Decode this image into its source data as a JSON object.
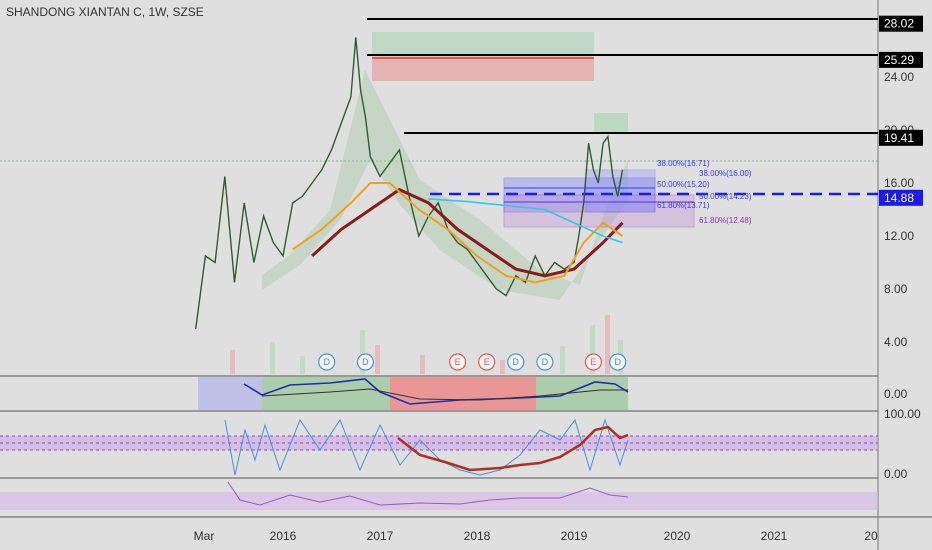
{
  "symbol_title": "SHANDONG XIANTAN C, 1W, SZSE",
  "colors": {
    "background": "#dfdfdf",
    "up": "#26a69a",
    "down": "#ef5350",
    "candle_up": "#2e7d32",
    "candle_down": "#c62828",
    "ma_long": "#8b1a1a",
    "ma_mid": "#f0a020",
    "ma_cyan": "#30c8e8",
    "fib_box": "#3a3aff",
    "fib_box2": "#8a30c8",
    "level_line": "#000000",
    "blue_dash": "#1a1aee",
    "rsi_line": "#4a90e2",
    "stoch_line": "#b03020",
    "bottom_osc": "#9a5ac0"
  },
  "chart_data": {
    "type": "line",
    "title": "SHANDONG XIANTAN C, 1W, SZSE",
    "price_axis": {
      "ylim": [
        0,
        28.5
      ],
      "ticks": [
        "4.00",
        "8.00",
        "12.00",
        "16.00",
        "20.00",
        "24.00"
      ]
    },
    "time_axis": {
      "labels": [
        "Mar",
        "2016",
        "2017",
        "2018",
        "2019",
        "2020",
        "2021",
        "20"
      ]
    },
    "price_levels": [
      {
        "label": "28.02",
        "value": 28.02,
        "style": "black"
      },
      {
        "label": "25.29",
        "value": 25.29,
        "style": "black"
      },
      {
        "label": "19.41",
        "value": 19.41,
        "style": "black"
      },
      {
        "label": "14.88",
        "value": 14.88,
        "style": "blue-dashed"
      }
    ],
    "fib_labels": [
      {
        "text": "38.00%(16.71)",
        "value": 16.71
      },
      {
        "text": "38.00%(16.00)",
        "value": 16.0
      },
      {
        "text": "50.00%(15.20)",
        "value": 15.2
      },
      {
        "text": "50.00%(14.23)",
        "value": 14.23
      },
      {
        "text": "61.80%(13.71)",
        "value": 13.71
      },
      {
        "text": "61.80%(12.48)",
        "value": 12.48
      }
    ],
    "series": [
      {
        "name": "close",
        "x": [
          2015.1,
          2015.2,
          2015.3,
          2015.4,
          2015.5,
          2015.6,
          2015.7,
          2015.8,
          2015.9,
          2016.0,
          2016.1,
          2016.2,
          2016.3,
          2016.4,
          2016.5,
          2016.6,
          2016.7,
          2016.75,
          2016.8,
          2016.85,
          2016.9,
          2017.0,
          2017.1,
          2017.2,
          2017.3,
          2017.4,
          2017.5,
          2017.6,
          2017.7,
          2017.8,
          2017.9,
          2018.0,
          2018.1,
          2018.2,
          2018.3,
          2018.4,
          2018.5,
          2018.6,
          2018.7,
          2018.8,
          2018.9,
          2019.0,
          2019.05,
          2019.1,
          2019.15,
          2019.2,
          2019.25,
          2019.3,
          2019.35,
          2019.4,
          2019.45,
          2019.5
        ],
        "values": [
          5.0,
          10.5,
          10.0,
          16.5,
          8.5,
          14.5,
          10.0,
          13.5,
          11.5,
          10.5,
          14.5,
          15.0,
          16.0,
          17.0,
          18.5,
          20.5,
          22.5,
          27.0,
          23.0,
          21.0,
          18.0,
          16.5,
          17.5,
          18.5,
          15.0,
          12.0,
          13.5,
          14.5,
          12.5,
          11.5,
          11.0,
          10.0,
          9.0,
          8.0,
          7.5,
          9.0,
          8.5,
          10.5,
          9.0,
          10.0,
          9.5,
          10.0,
          12.0,
          14.5,
          19.0,
          17.0,
          16.0,
          19.0,
          19.5,
          16.5,
          15.0,
          17.0
        ]
      },
      {
        "name": "ma-long",
        "x": [
          2016.3,
          2016.6,
          2016.9,
          2017.2,
          2017.5,
          2017.8,
          2018.1,
          2018.4,
          2018.7,
          2019.0,
          2019.3,
          2019.5
        ],
        "values": [
          10.5,
          12.5,
          14.0,
          15.5,
          14.5,
          12.5,
          11.0,
          9.5,
          9.0,
          9.5,
          11.5,
          13.0
        ]
      },
      {
        "name": "ma-mid",
        "x": [
          2016.1,
          2016.4,
          2016.7,
          2016.9,
          2017.1,
          2017.4,
          2017.7,
          2018.0,
          2018.3,
          2018.6,
          2018.9,
          2019.1,
          2019.3,
          2019.5
        ],
        "values": [
          11.0,
          12.5,
          14.5,
          16.0,
          16.0,
          14.0,
          12.5,
          10.5,
          9.0,
          8.5,
          9.0,
          11.5,
          13.0,
          12.0
        ]
      },
      {
        "name": "cyan",
        "x": [
          2017.5,
          2017.9,
          2018.3,
          2018.7,
          2019.0,
          2019.3,
          2019.5
        ],
        "values": [
          14.8,
          14.6,
          14.3,
          14.0,
          13.0,
          12.0,
          11.5
        ]
      }
    ],
    "events": [
      {
        "label": "D",
        "type": "dividend",
        "x": 2016.45
      },
      {
        "label": "D",
        "type": "dividend",
        "x": 2016.85
      },
      {
        "label": "E",
        "type": "earnings",
        "x": 2017.8
      },
      {
        "label": "E",
        "type": "earnings",
        "x": 2018.1
      },
      {
        "label": "D",
        "type": "dividend",
        "x": 2018.4
      },
      {
        "label": "D",
        "type": "dividend",
        "x": 2018.7
      },
      {
        "label": "E",
        "type": "earnings",
        "x": 2019.2
      },
      {
        "label": "D",
        "type": "dividend",
        "x": 2019.45
      }
    ],
    "panels": [
      {
        "name": "macd",
        "ticks": [
          "0.00"
        ]
      },
      {
        "name": "rsi",
        "ticks": [
          "100.00",
          "0.00"
        ]
      },
      {
        "name": "oscillator",
        "ticks": []
      }
    ]
  }
}
